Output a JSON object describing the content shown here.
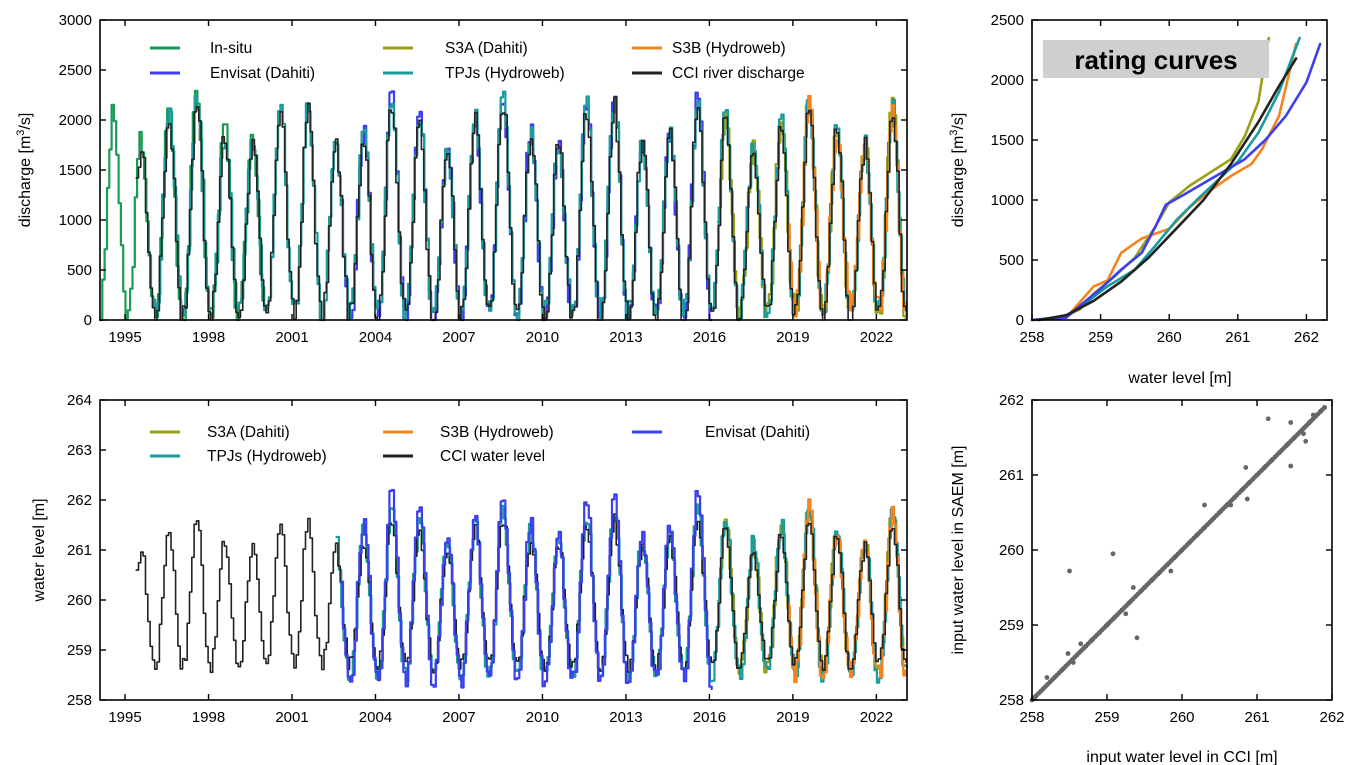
{
  "chart_data": [
    {
      "id": "discharge_ts",
      "type": "line",
      "xlabel": "",
      "ylabel": "discharge [m³/s]",
      "ylabel_parts": {
        "pre": "discharge [m",
        "sup": "3",
        "post": "/s]"
      },
      "xlim": [
        1994.1,
        2023.1
      ],
      "ylim": [
        0,
        3000
      ],
      "xticks": [
        1995,
        1998,
        2001,
        2004,
        2007,
        2010,
        2013,
        2016,
        2019,
        2022
      ],
      "yticks": [
        0,
        500,
        1000,
        1500,
        2000,
        2500,
        3000
      ],
      "legend_placement": "top",
      "series": [
        {
          "name": "In-situ",
          "color": "#1a9a55",
          "start": 1994.1,
          "end": 1999.95,
          "peak": 2120,
          "low": 40,
          "phase": 0.0,
          "seed": 3
        },
        {
          "name": "Envisat (Dahiti)",
          "color": "#3c3ff0",
          "start": 2002.75,
          "end": 2016.1,
          "peak": 2050,
          "low": 40,
          "phase": 0.0,
          "seed": 5
        },
        {
          "name": "S3A (Dahiti)",
          "color": "#9aa015",
          "start": 2016.3,
          "end": 2023.1,
          "peak": 2050,
          "low": 60,
          "phase": 0.0,
          "seed": 7
        },
        {
          "name": "TPJs (Hydroweb)",
          "color": "#1a9c9c",
          "start": 1996.0,
          "end": 2023.1,
          "peak": 2050,
          "low": 80,
          "phase": 0.0,
          "seed": 11
        },
        {
          "name": "S3B (Hydroweb)",
          "color": "#f5841f",
          "start": 2018.8,
          "end": 2023.1,
          "peak": 1990,
          "low": 120,
          "phase": 0.0,
          "seed": 13
        },
        {
          "name": "CCI river discharge",
          "color": "#222222",
          "start": 1995.4,
          "end": 2023.1,
          "peak": 2000,
          "low": 50,
          "phase": 0.0,
          "seed": 17
        }
      ]
    },
    {
      "id": "rating_curves",
      "type": "line",
      "title": "rating curves",
      "xlabel": "water level [m]",
      "ylabel": "discharge [m³/s]",
      "ylabel_parts": {
        "pre": "discharge [m",
        "sup": "3",
        "post": "/s]"
      },
      "xlim": [
        258,
        262.3
      ],
      "ylim": [
        0,
        2500
      ],
      "xticks": [
        258,
        259,
        260,
        261,
        262
      ],
      "yticks": [
        0,
        500,
        1000,
        1500,
        2000,
        2500
      ],
      "series": [
        {
          "name": "S3A (Dahiti)",
          "color": "#9aa015",
          "points": [
            [
              258,
              0
            ],
            [
              258.4,
              10
            ],
            [
              258.7,
              90
            ],
            [
              258.9,
              220
            ],
            [
              259.2,
              360
            ],
            [
              259.5,
              520
            ],
            [
              259.8,
              780
            ],
            [
              260.0,
              980
            ],
            [
              260.3,
              1120
            ],
            [
              260.6,
              1230
            ],
            [
              260.9,
              1340
            ],
            [
              261.1,
              1530
            ],
            [
              261.3,
              1820
            ],
            [
              261.45,
              2350
            ]
          ]
        },
        {
          "name": "S3B (Hydroweb)",
          "color": "#f5841f",
          "points": [
            [
              258,
              0
            ],
            [
              258.5,
              20
            ],
            [
              258.9,
              280
            ],
            [
              259.1,
              330
            ],
            [
              259.3,
              560
            ],
            [
              259.6,
              680
            ],
            [
              259.8,
              720
            ],
            [
              260.0,
              760
            ],
            [
              260.3,
              940
            ],
            [
              260.6,
              1080
            ],
            [
              260.9,
              1200
            ],
            [
              261.2,
              1300
            ],
            [
              261.35,
              1420
            ],
            [
              261.6,
              1700
            ],
            [
              261.85,
              2300
            ]
          ]
        },
        {
          "name": "TPJs (Hydroweb)",
          "color": "#1a9c9c",
          "points": [
            [
              258,
              0
            ],
            [
              258.5,
              30
            ],
            [
              258.8,
              150
            ],
            [
              259.1,
              280
            ],
            [
              259.5,
              420
            ],
            [
              259.8,
              620
            ],
            [
              260.1,
              830
            ],
            [
              260.4,
              1000
            ],
            [
              260.7,
              1160
            ],
            [
              261.0,
              1320
            ],
            [
              261.3,
              1560
            ],
            [
              261.6,
              1900
            ],
            [
              261.9,
              2350
            ]
          ]
        },
        {
          "name": "Envisat (Dahiti)",
          "color": "#3c3ff0",
          "points": [
            [
              258,
              0
            ],
            [
              258.5,
              20
            ],
            [
              258.7,
              120
            ],
            [
              259.0,
              260
            ],
            [
              259.3,
              420
            ],
            [
              259.6,
              560
            ],
            [
              259.8,
              780
            ],
            [
              259.95,
              960
            ],
            [
              260.2,
              1040
            ],
            [
              260.5,
              1140
            ],
            [
              260.8,
              1240
            ],
            [
              261.1,
              1340
            ],
            [
              261.4,
              1500
            ],
            [
              261.7,
              1700
            ],
            [
              262.0,
              1980
            ],
            [
              262.2,
              2300
            ]
          ]
        },
        {
          "name": "CCI river discharge",
          "color": "#222222",
          "points": [
            [
              258.1,
              0
            ],
            [
              258.5,
              40
            ],
            [
              258.9,
              160
            ],
            [
              259.3,
              320
            ],
            [
              259.7,
              520
            ],
            [
              260.1,
              760
            ],
            [
              260.5,
              1000
            ],
            [
              260.9,
              1300
            ],
            [
              261.3,
              1650
            ],
            [
              261.6,
              1950
            ],
            [
              261.85,
              2180
            ]
          ]
        }
      ]
    },
    {
      "id": "water_level_ts",
      "type": "line",
      "xlabel": "",
      "ylabel": "water level [m]",
      "xlim": [
        1994.1,
        2023.1
      ],
      "ylim": [
        258,
        264
      ],
      "xticks": [
        1995,
        1998,
        2001,
        2004,
        2007,
        2010,
        2013,
        2016,
        2019,
        2022
      ],
      "yticks": [
        258,
        259,
        260,
        261,
        262,
        263,
        264
      ],
      "legend_placement": "top",
      "series": [
        {
          "name": "S3A (Dahiti)",
          "color": "#9aa015",
          "start": 2016.3,
          "end": 2023.1,
          "peak": 261.6,
          "low": 258.6,
          "phase": 0.0,
          "seed": 7
        },
        {
          "name": "TPJs (Hydroweb)",
          "color": "#1a9c9c",
          "start": 2002.6,
          "end": 2023.1,
          "peak": 261.6,
          "low": 258.5,
          "phase": 0.0,
          "seed": 11
        },
        {
          "name": "S3B (Hydroweb)",
          "color": "#f5841f",
          "start": 2018.8,
          "end": 2023.1,
          "peak": 261.6,
          "low": 258.5,
          "phase": 0.0,
          "seed": 13
        },
        {
          "name": "CCI water level",
          "color": "#222222",
          "start": 1995.4,
          "end": 2023.1,
          "peak": 261.4,
          "low": 258.7,
          "phase": 0.0,
          "seed": 17
        },
        {
          "name": "Envisat (Dahiti)",
          "color": "#3c3ff0",
          "start": 2002.75,
          "end": 2016.1,
          "peak": 261.8,
          "low": 258.4,
          "phase": 0.0,
          "seed": 5
        }
      ]
    },
    {
      "id": "wl_scatter",
      "type": "scatter",
      "xlabel": "input water level in CCI [m]",
      "ylabel": "input water level in SAEM [m]",
      "xlim": [
        258,
        262
      ],
      "ylim": [
        258,
        262
      ],
      "xticks": [
        258,
        259,
        260,
        261,
        262
      ],
      "yticks": [
        258,
        259,
        260,
        261,
        262
      ],
      "color": "#666666",
      "points": [
        [
          258.05,
          258.05
        ],
        [
          258.15,
          258.15
        ],
        [
          258.2,
          258.3
        ],
        [
          258.3,
          258.3
        ],
        [
          258.4,
          258.4
        ],
        [
          258.48,
          258.62
        ],
        [
          258.5,
          259.72
        ],
        [
          258.55,
          258.5
        ],
        [
          258.65,
          258.75
        ],
        [
          258.7,
          258.7
        ],
        [
          258.8,
          258.8
        ],
        [
          258.9,
          258.9
        ],
        [
          259.0,
          259.0
        ],
        [
          259.08,
          259.95
        ],
        [
          259.1,
          259.1
        ],
        [
          259.2,
          259.2
        ],
        [
          259.25,
          259.15
        ],
        [
          259.3,
          259.3
        ],
        [
          259.35,
          259.5
        ],
        [
          259.4,
          258.83
        ],
        [
          259.45,
          259.45
        ],
        [
          259.5,
          259.5
        ],
        [
          259.6,
          259.6
        ],
        [
          259.7,
          259.7
        ],
        [
          259.8,
          259.8
        ],
        [
          259.85,
          259.72
        ],
        [
          259.9,
          259.9
        ],
        [
          260.0,
          260.0
        ],
        [
          260.1,
          260.1
        ],
        [
          260.2,
          260.2
        ],
        [
          260.3,
          260.6
        ],
        [
          260.3,
          260.3
        ],
        [
          260.4,
          260.4
        ],
        [
          260.5,
          260.5
        ],
        [
          260.6,
          260.6
        ],
        [
          260.65,
          260.6
        ],
        [
          260.7,
          260.7
        ],
        [
          260.8,
          260.8
        ],
        [
          260.85,
          261.1
        ],
        [
          260.87,
          260.68
        ],
        [
          260.9,
          260.9
        ],
        [
          261.0,
          261.0
        ],
        [
          261.1,
          261.1
        ],
        [
          261.15,
          261.75
        ],
        [
          261.2,
          261.2
        ],
        [
          261.3,
          261.3
        ],
        [
          261.4,
          261.4
        ],
        [
          261.45,
          261.7
        ],
        [
          261.45,
          261.12
        ],
        [
          261.5,
          261.5
        ],
        [
          261.6,
          261.6
        ],
        [
          261.62,
          261.55
        ],
        [
          261.65,
          261.45
        ],
        [
          261.7,
          261.7
        ],
        [
          261.75,
          261.8
        ],
        [
          261.85,
          261.85
        ],
        [
          261.9,
          261.9
        ]
      ]
    }
  ]
}
